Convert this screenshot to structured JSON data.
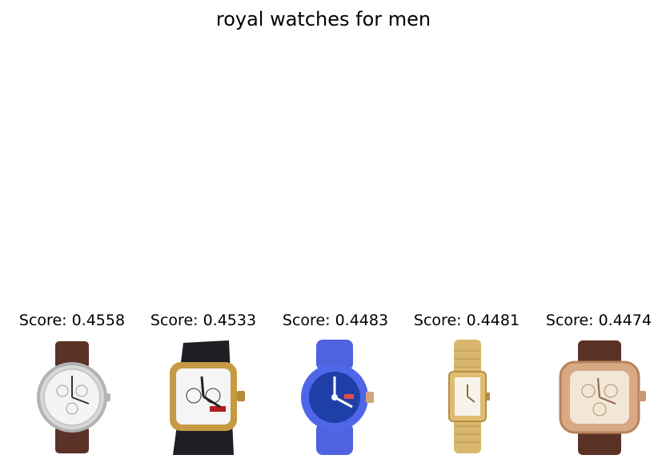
{
  "title": "royal watches for men",
  "results": [
    {
      "score_text": "Score: 0.4558",
      "image_icon": "silver-chronograph-watch-brown-strap-icon",
      "colors": {
        "case": "#dedede",
        "strap": "#5b3128",
        "dial": "#f4f4f4"
      }
    },
    {
      "score_text": "Score: 0.4533",
      "image_icon": "gold-square-watch-black-strap-icon",
      "colors": {
        "case": "#c59a43",
        "strap": "#1d1f24",
        "dial": "#f5f5f5"
      }
    },
    {
      "score_text": "Score: 0.4483",
      "image_icon": "blue-sport-watch-icon",
      "colors": {
        "case": "#5066e8",
        "strap": "#4f63df",
        "dial": "#1f3fa8"
      }
    },
    {
      "score_text": "Score: 0.4481",
      "image_icon": "gold-rectangular-bracelet-watch-icon",
      "colors": {
        "case": "#dfbc70",
        "strap": "#d9b76e",
        "dial": "#f7f3ea"
      }
    },
    {
      "score_text": "Score: 0.4474",
      "image_icon": "rose-gold-square-chronograph-brown-strap-icon",
      "colors": {
        "case": "#d9a986",
        "strap": "#5a3225",
        "dial": "#f2e6d6"
      }
    }
  ]
}
